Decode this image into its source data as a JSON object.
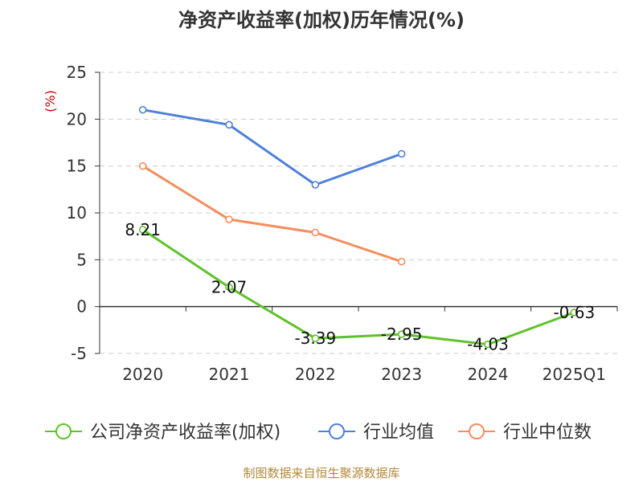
{
  "chart_data": {
    "type": "line",
    "title": "净资产收益率(加权)历年情况(%)",
    "ylabel": "(%)",
    "categories": [
      "2020",
      "2021",
      "2022",
      "2023",
      "2024",
      "2025Q1"
    ],
    "ylim": [
      -5,
      25
    ],
    "yticks": [
      25,
      20,
      15,
      10,
      5,
      0,
      -5
    ],
    "grid": true,
    "legend_position": "bottom",
    "series": [
      {
        "name": "公司净资产收益率(加权)",
        "color": "#5ec22a",
        "values": [
          8.21,
          2.07,
          -3.39,
          -2.95,
          -4.03,
          -0.63
        ],
        "labels": [
          "8.21",
          "2.07",
          "-3.39",
          "-2.95",
          "-4.03",
          "-0.63"
        ]
      },
      {
        "name": "行业均值",
        "color": "#4f80d9",
        "values": [
          21.0,
          19.4,
          13.0,
          16.3,
          null,
          null
        ]
      },
      {
        "name": "行业中位数",
        "color": "#f58d5e",
        "values": [
          15.0,
          9.3,
          7.9,
          4.8,
          null,
          null
        ]
      }
    ]
  },
  "source": "制图数据来自恒生聚源数据库"
}
